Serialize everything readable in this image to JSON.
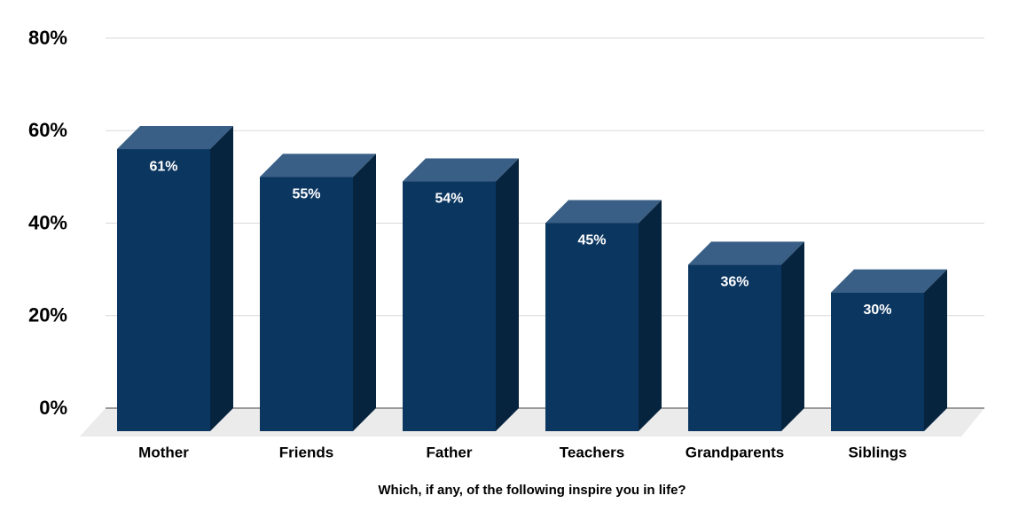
{
  "chart_data": {
    "type": "bar3d",
    "categories": [
      "Mother",
      "Friends",
      "Father",
      "Teachers",
      "Grandparents",
      "Siblings"
    ],
    "values": [
      61,
      55,
      54,
      45,
      36,
      30
    ],
    "value_labels": [
      "61%",
      "55%",
      "54%",
      "45%",
      "36%",
      "30%"
    ],
    "x_label": "Which, if any, of the following inspire you in life?",
    "ylim": [
      0,
      80
    ],
    "yticks": [
      {
        "value": 0,
        "label": "0%"
      },
      {
        "value": 20,
        "label": "20%"
      },
      {
        "value": 40,
        "label": "40%"
      },
      {
        "value": 60,
        "label": "60%"
      },
      {
        "value": 80,
        "label": "80%"
      }
    ],
    "grid": true,
    "color": "#0b3660"
  }
}
